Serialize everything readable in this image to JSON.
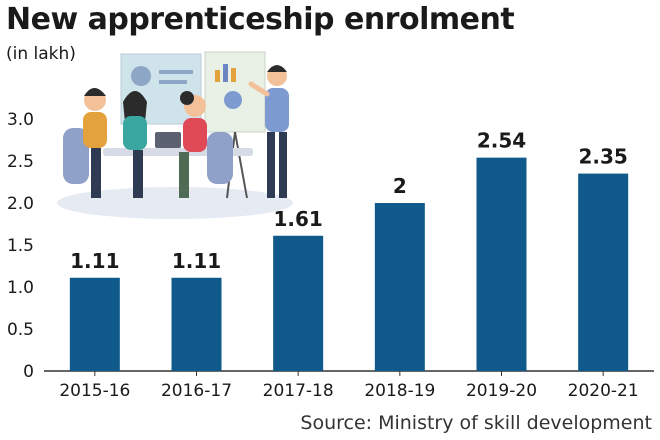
{
  "header": {
    "title": "New apprenticeship enrolment",
    "subtitle": "(in lakh)"
  },
  "footer": {
    "source": "Source: Ministry of skill development"
  },
  "colors": {
    "bar": "#0f5a8a",
    "axis": "#333333"
  },
  "illustration": {
    "icon": "office-meeting-illustration"
  },
  "chart_data": {
    "type": "bar",
    "title": "New apprenticeship enrolment",
    "subtitle": "(in lakh)",
    "categories": [
      "2015-16",
      "2016-17",
      "2017-18",
      "2018-19",
      "2019-20",
      "2020-21"
    ],
    "values": [
      1.11,
      1.11,
      1.61,
      2,
      2.54,
      2.35
    ],
    "value_labels": [
      "1.11",
      "1.11",
      "1.61",
      "2",
      "2.54",
      "2.35"
    ],
    "yticks": [
      "0",
      "0.5",
      "1.0",
      "1.5",
      "2.0",
      "2.5",
      "3.0"
    ],
    "ytick_values": [
      0,
      0.5,
      1.0,
      1.5,
      2.0,
      2.5,
      3.0
    ],
    "ylim": [
      0,
      3.0
    ],
    "xlabel": "",
    "ylabel": "",
    "grid": false,
    "legend": "none"
  }
}
